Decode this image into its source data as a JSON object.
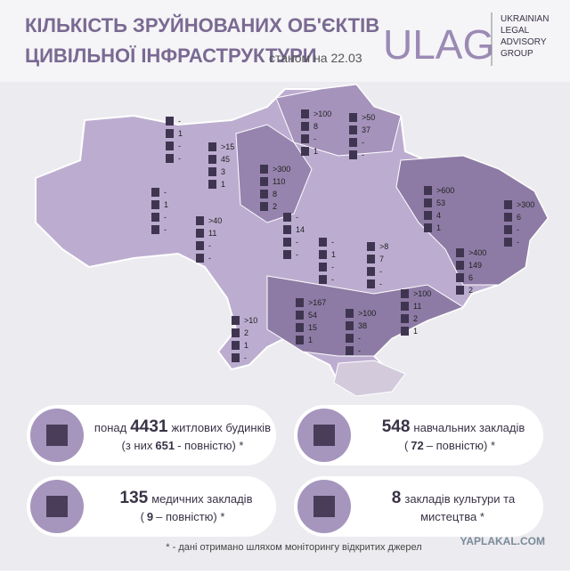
{
  "header": {
    "title_line1": "КІЛЬКІСТЬ ЗРУЙНОВАНИХ ОБ'ЄКТІВ",
    "title_line2": "ЦИВІЛЬНОЇ ІНФРАСТРУКТУРИ",
    "date": "станом на 22.03",
    "logo": "ULAG",
    "logo_text": [
      "UKRAINIAN",
      "LEGAL",
      "ADVISORY",
      "GROUP"
    ]
  },
  "regions": [
    [
      "-",
      1,
      "-",
      "-"
    ],
    [
      ">15",
      45,
      3,
      1
    ],
    [
      ">300",
      110,
      8,
      2
    ],
    [
      ">100",
      8,
      "-",
      1
    ],
    [
      ">50",
      37,
      "-",
      "-"
    ],
    [
      "-",
      1,
      "-",
      "-"
    ],
    [
      ">40",
      11,
      "-",
      "-"
    ],
    [
      "-",
      14,
      "-",
      "-"
    ],
    [
      ">600",
      53,
      4,
      1
    ],
    [
      ">300",
      6,
      "-",
      "-"
    ],
    [
      "-",
      1,
      "-",
      "-"
    ],
    [
      ">8",
      7,
      "-",
      "-"
    ],
    [
      ">400",
      149,
      6,
      2
    ],
    [
      ">167",
      54,
      15,
      1
    ],
    [
      ">100",
      11,
      2,
      1
    ],
    [
      ">10",
      2,
      1,
      "-"
    ],
    [
      ">100",
      38,
      "-",
      "-"
    ]
  ],
  "cards": [
    {
      "pre": "понад",
      "number": 4431,
      "post": "житлових будинків",
      "line2_pre": "(з них",
      "line2_number": 651,
      "line2_post": "- повністю) *"
    },
    {
      "number": 548,
      "post": "навчальних закладів",
      "line2_pre": "(",
      "line2_number": 72,
      "line2_post": "– повністю) *"
    },
    {
      "number": 135,
      "post": "медичних закладів",
      "line2_pre": "(",
      "line2_number": 9,
      "line2_post": "– повністю) *"
    },
    {
      "number": 8,
      "post": "закладів культури та",
      "line2_post": "мистецтва *"
    }
  ],
  "footnote": "* - дані отримано шляхом моніторингу відкритих джерел",
  "watermark": "YAPLAKAL.COM"
}
